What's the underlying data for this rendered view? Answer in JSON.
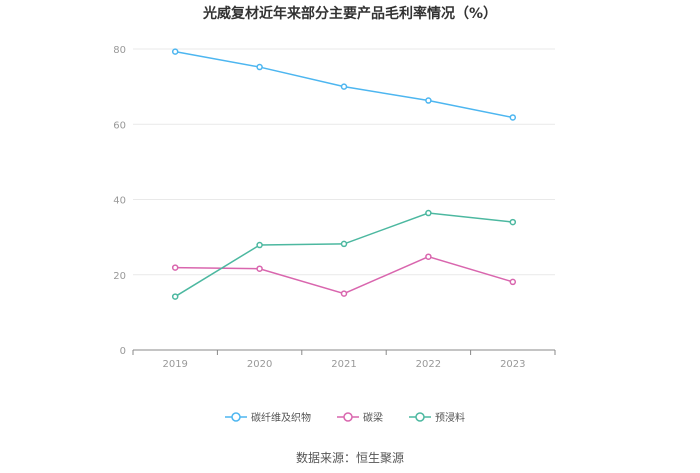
{
  "chart_data": {
    "type": "line",
    "title": "光威复材近年来部分主要产品毛利率情况（%）",
    "xlabel": "",
    "ylabel": "",
    "categories": [
      "2019",
      "2020",
      "2021",
      "2022",
      "2023"
    ],
    "ylim": [
      0,
      80
    ],
    "yticks": [
      0,
      20,
      40,
      60,
      80
    ],
    "grid": true,
    "legend_position": "bottom",
    "series": [
      {
        "name": "碳纤维及织物",
        "color": "#4db6f0",
        "values": [
          79.3,
          75.2,
          70.0,
          66.3,
          61.8
        ]
      },
      {
        "name": "碳梁",
        "color": "#d966ae",
        "values": [
          21.9,
          21.6,
          15.0,
          24.8,
          18.1
        ]
      },
      {
        "name": "预浸料",
        "color": "#4cb8a0",
        "values": [
          14.2,
          27.9,
          28.2,
          36.4,
          34.0
        ]
      }
    ]
  },
  "source": "数据来源：恒生聚源"
}
